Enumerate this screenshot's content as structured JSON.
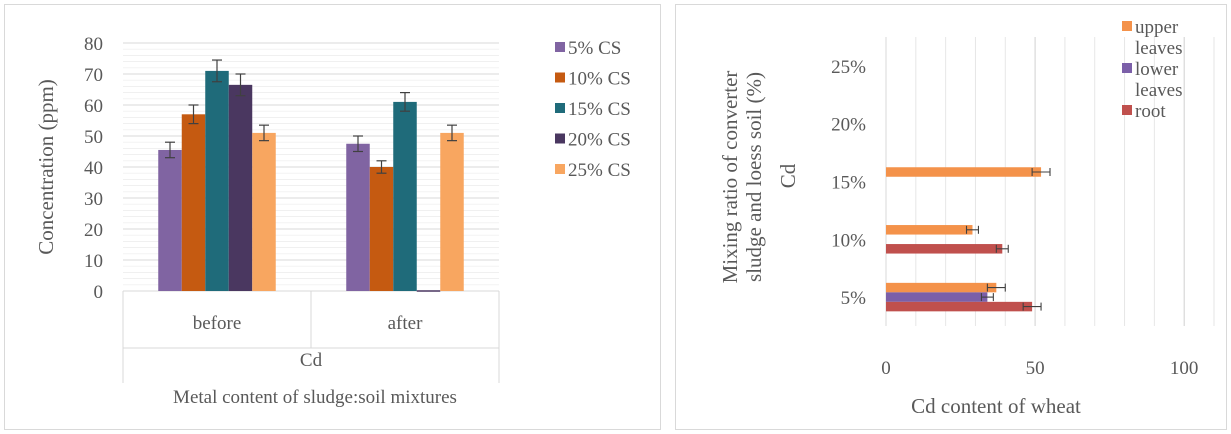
{
  "colors": {
    "5% CS": "#8064a2",
    "10% CS": "#c55a11",
    "15% CS": "#1f6b7a",
    "20% CS": "#4a3760",
    "25% CS": "#f8a660",
    "upper leaves": "#f4924a",
    "lower leaves": "#7b5fa8",
    "root": "#c0504d",
    "grid": "#e0e0e0",
    "axis_text": "#595959"
  },
  "chart_data": [
    {
      "type": "bar",
      "ylabel": "Concentration  (ppm)",
      "xlabel": "Metal content of sludge:soil mixtures",
      "group_label": "Cd",
      "ylim": [
        0,
        80
      ],
      "yticks": [
        "0",
        "10",
        "20",
        "30",
        "40",
        "50",
        "60",
        "70",
        "80"
      ],
      "categories": [
        "before",
        "after"
      ],
      "series": [
        {
          "name": "5% CS",
          "values": [
            45.5,
            47.5
          ],
          "errors": [
            2.5,
            2.5
          ]
        },
        {
          "name": "10% CS",
          "values": [
            57,
            40
          ],
          "errors": [
            3,
            2
          ]
        },
        {
          "name": "15% CS",
          "values": [
            71,
            61
          ],
          "errors": [
            3.5,
            3
          ]
        },
        {
          "name": "20% CS",
          "values": [
            66.5,
            0
          ],
          "errors": [
            3.5,
            0
          ]
        },
        {
          "name": "25% CS",
          "values": [
            51,
            51
          ],
          "errors": [
            2.5,
            2.5
          ]
        }
      ],
      "grid": true,
      "legend_position": "right"
    },
    {
      "type": "bar",
      "orientation": "horizontal",
      "ylabel_lines": [
        "Mixing ratio of converter",
        "sludge and loess soil (%)"
      ],
      "ylabel_group": "Cd",
      "xlabel": "Cd content of wheat",
      "xlim": [
        0,
        110
      ],
      "xticks": [
        "0",
        "50",
        "100"
      ],
      "categories": [
        "5%",
        "10%",
        "15%",
        "20%",
        "25%"
      ],
      "series": [
        {
          "name": "upper leaves",
          "legend_lines": [
            "upper",
            "leaves"
          ],
          "values": [
            37,
            29,
            52,
            0,
            0
          ],
          "errors": [
            3,
            2,
            3,
            0,
            0
          ]
        },
        {
          "name": "lower leaves",
          "legend_lines": [
            "lower",
            "leaves"
          ],
          "values": [
            34,
            0,
            0,
            0,
            0
          ],
          "errors": [
            2,
            0,
            0,
            0,
            0
          ]
        },
        {
          "name": "root",
          "legend_lines": [
            "root"
          ],
          "values": [
            49,
            39,
            0,
            0,
            0
          ],
          "errors": [
            3,
            2,
            0,
            0,
            0
          ]
        }
      ],
      "grid": true,
      "legend_position": "right"
    }
  ]
}
